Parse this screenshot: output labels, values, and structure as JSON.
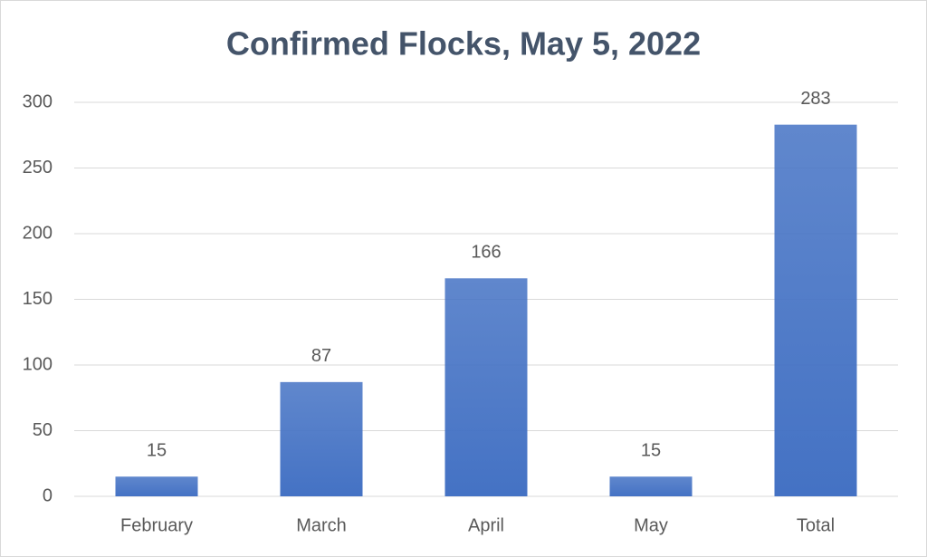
{
  "chart_data": {
    "type": "bar",
    "title": "Confirmed Flocks, May 5, 2022",
    "categories": [
      "February",
      "March",
      "April",
      "May",
      "Total"
    ],
    "values": [
      15,
      87,
      166,
      15,
      283
    ],
    "color": "#4472c4",
    "ylim": [
      0,
      300
    ],
    "yticks": [
      0,
      50,
      100,
      150,
      200,
      250,
      300
    ],
    "grid": true,
    "data_labels": true
  }
}
